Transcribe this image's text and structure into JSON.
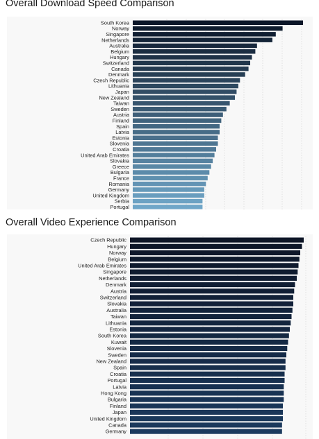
{
  "chart_data": [
    {
      "type": "bar",
      "orientation": "horizontal",
      "title": "Overall Download Speed Comparison",
      "xlabel": "",
      "ylabel": "",
      "grid": true,
      "color_scale": [
        "#0b1628",
        "#6fa6c8"
      ],
      "categories": [
        "South Korea",
        "Norway",
        "Singapore",
        "Netherlands",
        "Australia",
        "Belgium",
        "Hungary",
        "Switzerland",
        "Canada",
        "Denmark",
        "Czech Republic",
        "Lithuania",
        "Japan",
        "New Zealand",
        "Taiwan",
        "Sweden",
        "Austria",
        "Finland",
        "Spain",
        "Latvia",
        "Estonia",
        "Slovenia",
        "Croatia",
        "United Arab Emirates",
        "Slovakia",
        "Greece",
        "Bulgaria",
        "France",
        "Romania",
        "Germany",
        "United Kingdom",
        "Serbia",
        "Portugal"
      ],
      "values": [
        100,
        88,
        84,
        82,
        73,
        72,
        70,
        69,
        68,
        66,
        63,
        62,
        61,
        60,
        57,
        55,
        53,
        52,
        51,
        51,
        50,
        50,
        49,
        48,
        47,
        46,
        45,
        44,
        43,
        42,
        42,
        41,
        41
      ],
      "xlim": [
        0,
        100
      ]
    },
    {
      "type": "bar",
      "orientation": "horizontal",
      "title": "Overall Video Experience Comparison",
      "xlabel": "",
      "ylabel": "",
      "grid": true,
      "color_scale": [
        "#0d1526",
        "#1b3a5e"
      ],
      "categories": [
        "Czech Republic",
        "Hungary",
        "Norway",
        "Belgium",
        "United Arab Emirates",
        "Singapore",
        "Netherlands",
        "Denmark",
        "Austria",
        "Switzerland",
        "Slovakia",
        "Australia",
        "Taiwan",
        "Lithuania",
        "Estonia",
        "South Korea",
        "Kuwait",
        "Slovenia",
        "Sweden",
        "New Zealand",
        "Spain",
        "Croatia",
        "Portugal",
        "Latvia",
        "Hong Kong",
        "Bulgaria",
        "Finland",
        "Japan",
        "United Kingdom",
        "Canada",
        "Germany"
      ],
      "values": [
        100,
        99,
        98,
        97.5,
        97,
        96.5,
        96,
        95,
        94.5,
        94,
        94,
        93.5,
        93,
        92.5,
        92,
        91.5,
        91,
        90.5,
        90,
        89.5,
        89.5,
        89,
        89,
        88.5,
        88.5,
        88.5,
        88,
        88,
        88,
        87.5,
        87.5
      ],
      "xlim": [
        0,
        100
      ]
    }
  ]
}
